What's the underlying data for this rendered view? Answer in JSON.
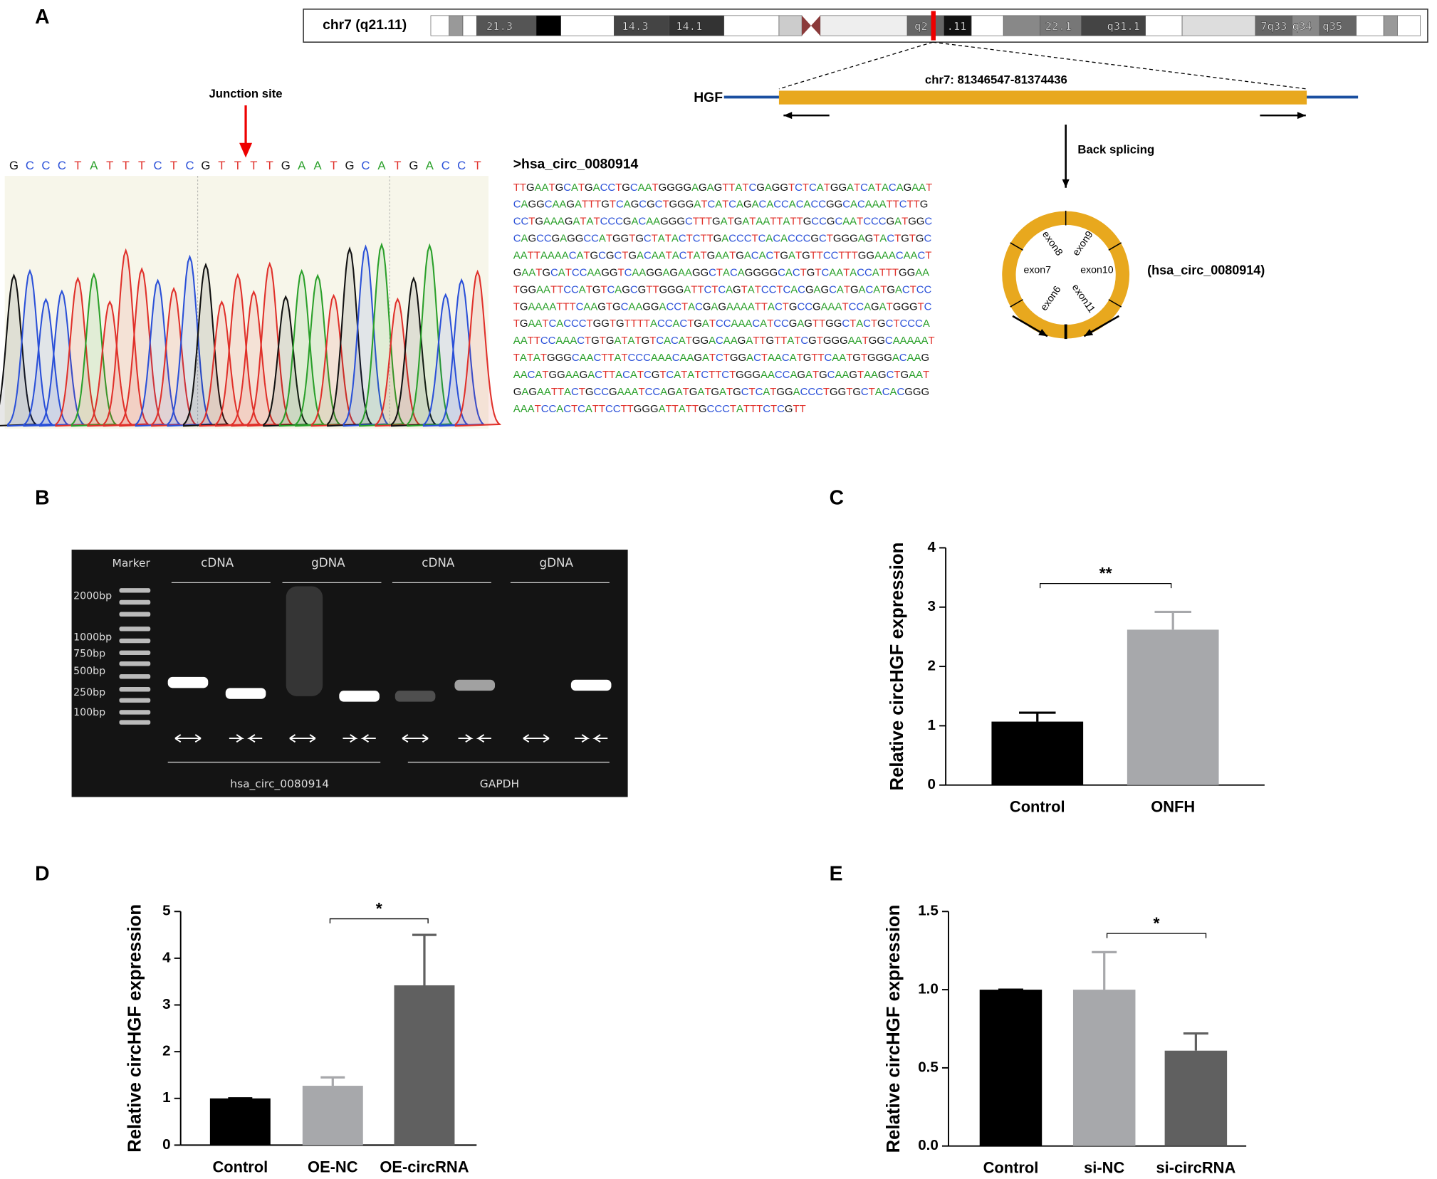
{
  "panels": {
    "a": {
      "label": "A",
      "chromosome": "chr7 (q21.11)",
      "bands": [
        "21.3",
        "14.3",
        "14.1",
        "q2",
        ".11",
        "22.1",
        "q31.1",
        "7q33",
        "q34",
        "q35"
      ],
      "gene": "HGF",
      "coordinates": "chr7: 81346547-81374436",
      "back_splicing": "Back splicing",
      "exons": [
        "exon6",
        "exon7",
        "exon8",
        "exon9",
        "exon10",
        "exon11"
      ],
      "circ_name": "(hsa_circ_0080914)",
      "junction": "Junction site",
      "trace_bases": "GCCCTATTTCTCGTTTTGAATGCATGACCT",
      "sequence_title": ">hsa_circ_0080914",
      "sequence": [
        "TTGAATGCATGACCTGCAATGGGGAGAGTTATCGAGGTCTCATGGATCATACAGAAT",
        "CAGGCAAGATTTGTCAGCGCTGGGATCATCAGACACCACACCGGCACAAATTCTTG",
        "CCTGAAAGATATCCCGACAAGGGCTTTGATGATAATTATTGCCGCAATCCCGATGGC",
        "CAGCCGAGGCCATGGTGCTATACTCTTGACCCTCACACCCGCTGGGAGTACTGTGC",
        "AATTAAAACATGCGCTGACAATACTATGAATGACACTGATGTTCCTTTGGAAACAACT",
        "GAATGCATCCAAGGTCAAGGAGAAGGCTACAGGGGCACTGTCAATACCATTTGGAA",
        "TGGAATTCCATGTCAGCGTTGGGATTCTCAGTATCCTCACGAGCATGACATGACTCC",
        "TGAAAATTTCAAGTGCAAGGACCTACGAGAAAATTACTGCCGAAATCCAGATGGGTC",
        "TGAATCACCCTGGTGTTTTACCACTGATCCAAACATCCGAGTTGGCTACTGCTCCCA",
        "AATTCCAAACTGTGATATGTCACATGGACAAGATTGTTATCGTGGGAATGGCAAAAAT",
        "TATATGGGCAACTTATCCCAAACAAGATCTGGACTAACATGTTCAATGTGGGACAAG",
        "AACATGGAAGACTTACATCGTCATATCTTCTGGGAACCAGATGCAAGTAAGCTGAAT",
        "GAGAATTACTGCCGAAATCCAGATGATGATGCTCATGGACCCTGGTGCTACACGGG",
        "AAATCCACTCATTCCTTGGGATTATTGCCCTATTTCTCGTT"
      ]
    },
    "b": {
      "label": "B",
      "marker": "Marker",
      "lanes": [
        "cDNA",
        "gDNA",
        "cDNA",
        "gDNA"
      ],
      "sizes": [
        "2000bp",
        "1000bp",
        "750bp",
        "500bp",
        "250bp",
        "100bp"
      ],
      "groups": [
        "hsa_circ_0080914",
        "GAPDH"
      ]
    }
  },
  "chart_data": [
    {
      "type": "bar",
      "panel": "C",
      "ylabel": "Relative circHGF expression",
      "annotation": "**",
      "categories": [
        "Control",
        "ONFH"
      ],
      "values": [
        1.07,
        2.62
      ],
      "errors": [
        0.15,
        0.3
      ],
      "colors": [
        "#000000",
        "#a7a8ab"
      ],
      "ylim": [
        0,
        4
      ],
      "yticks": [
        0,
        1,
        2,
        3,
        4
      ]
    },
    {
      "type": "bar",
      "panel": "D",
      "ylabel": "Relative circHGF expression",
      "annotation": "*",
      "categories": [
        "Control",
        "OE-NC",
        "OE-circRNA"
      ],
      "values": [
        1.0,
        1.27,
        3.42
      ],
      "errors": [
        0,
        0.18,
        1.08
      ],
      "colors": [
        "#000000",
        "#a7a8ab",
        "#606060"
      ],
      "ylim": [
        0,
        5
      ],
      "yticks": [
        0,
        1,
        2,
        3,
        4,
        5
      ]
    },
    {
      "type": "bar",
      "panel": "E",
      "ylabel": "Relative circHGF expression",
      "annotation": "*",
      "categories": [
        "Control",
        "si-NC",
        "si-circRNA"
      ],
      "values": [
        1.0,
        1.0,
        0.61
      ],
      "errors": [
        0,
        0.24,
        0.11
      ],
      "colors": [
        "#000000",
        "#a7a8ab",
        "#606060"
      ],
      "ylim": [
        0,
        1.5
      ],
      "yticks": [
        {
          "value": 0,
          "label": "0.0"
        },
        {
          "value": 0.5,
          "label": "0.5"
        },
        {
          "value": 1,
          "label": "1.0"
        },
        {
          "value": 1.5,
          "label": "1.5"
        }
      ]
    }
  ]
}
